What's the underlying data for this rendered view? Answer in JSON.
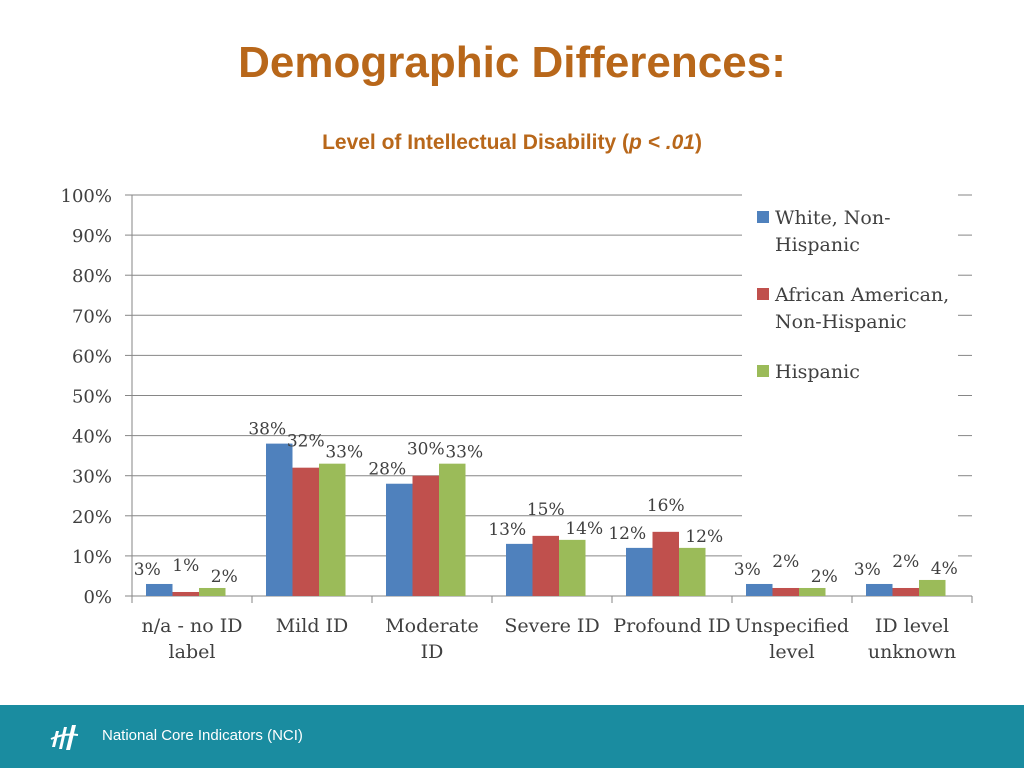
{
  "title": "Demographic Differences:",
  "subtitle": {
    "prefix": "Level of Intellectual Disability (",
    "stat": "p < .01",
    "suffix": ")"
  },
  "footer": {
    "text": "National Core Indicators (NCI)",
    "logo_icon": "nci-logo-icon"
  },
  "colors": {
    "title": "#b8671a",
    "footer_bg": "#1a8ca0",
    "axis": "#868686",
    "grid": "#868686"
  },
  "chart_data": {
    "type": "bar",
    "categories": [
      [
        "n/a - no ID",
        "label"
      ],
      [
        "Mild ID"
      ],
      [
        "Moderate",
        "ID"
      ],
      [
        "Severe ID"
      ],
      [
        "Profound ID"
      ],
      [
        "Unspecified",
        "level"
      ],
      [
        "ID level",
        "unknown"
      ]
    ],
    "series": [
      {
        "name": "White, Non-Hispanic",
        "legend_lines": [
          "White, Non-",
          "Hispanic"
        ],
        "color": "#4f81bd",
        "values": [
          3,
          38,
          28,
          13,
          12,
          3,
          3
        ]
      },
      {
        "name": "African American, Non-Hispanic",
        "legend_lines": [
          "African American,",
          "Non-Hispanic"
        ],
        "color": "#c0504d",
        "values": [
          1,
          32,
          30,
          15,
          16,
          2,
          2
        ]
      },
      {
        "name": "Hispanic",
        "legend_lines": [
          "Hispanic"
        ],
        "color": "#9bbb59",
        "values": [
          2,
          33,
          33,
          14,
          12,
          2,
          4
        ]
      }
    ],
    "ylim": [
      0,
      100
    ],
    "ytick_step": 10,
    "ytick_suffix": "%",
    "data_label_suffix": "%",
    "grid": true,
    "legend_position": "right"
  }
}
